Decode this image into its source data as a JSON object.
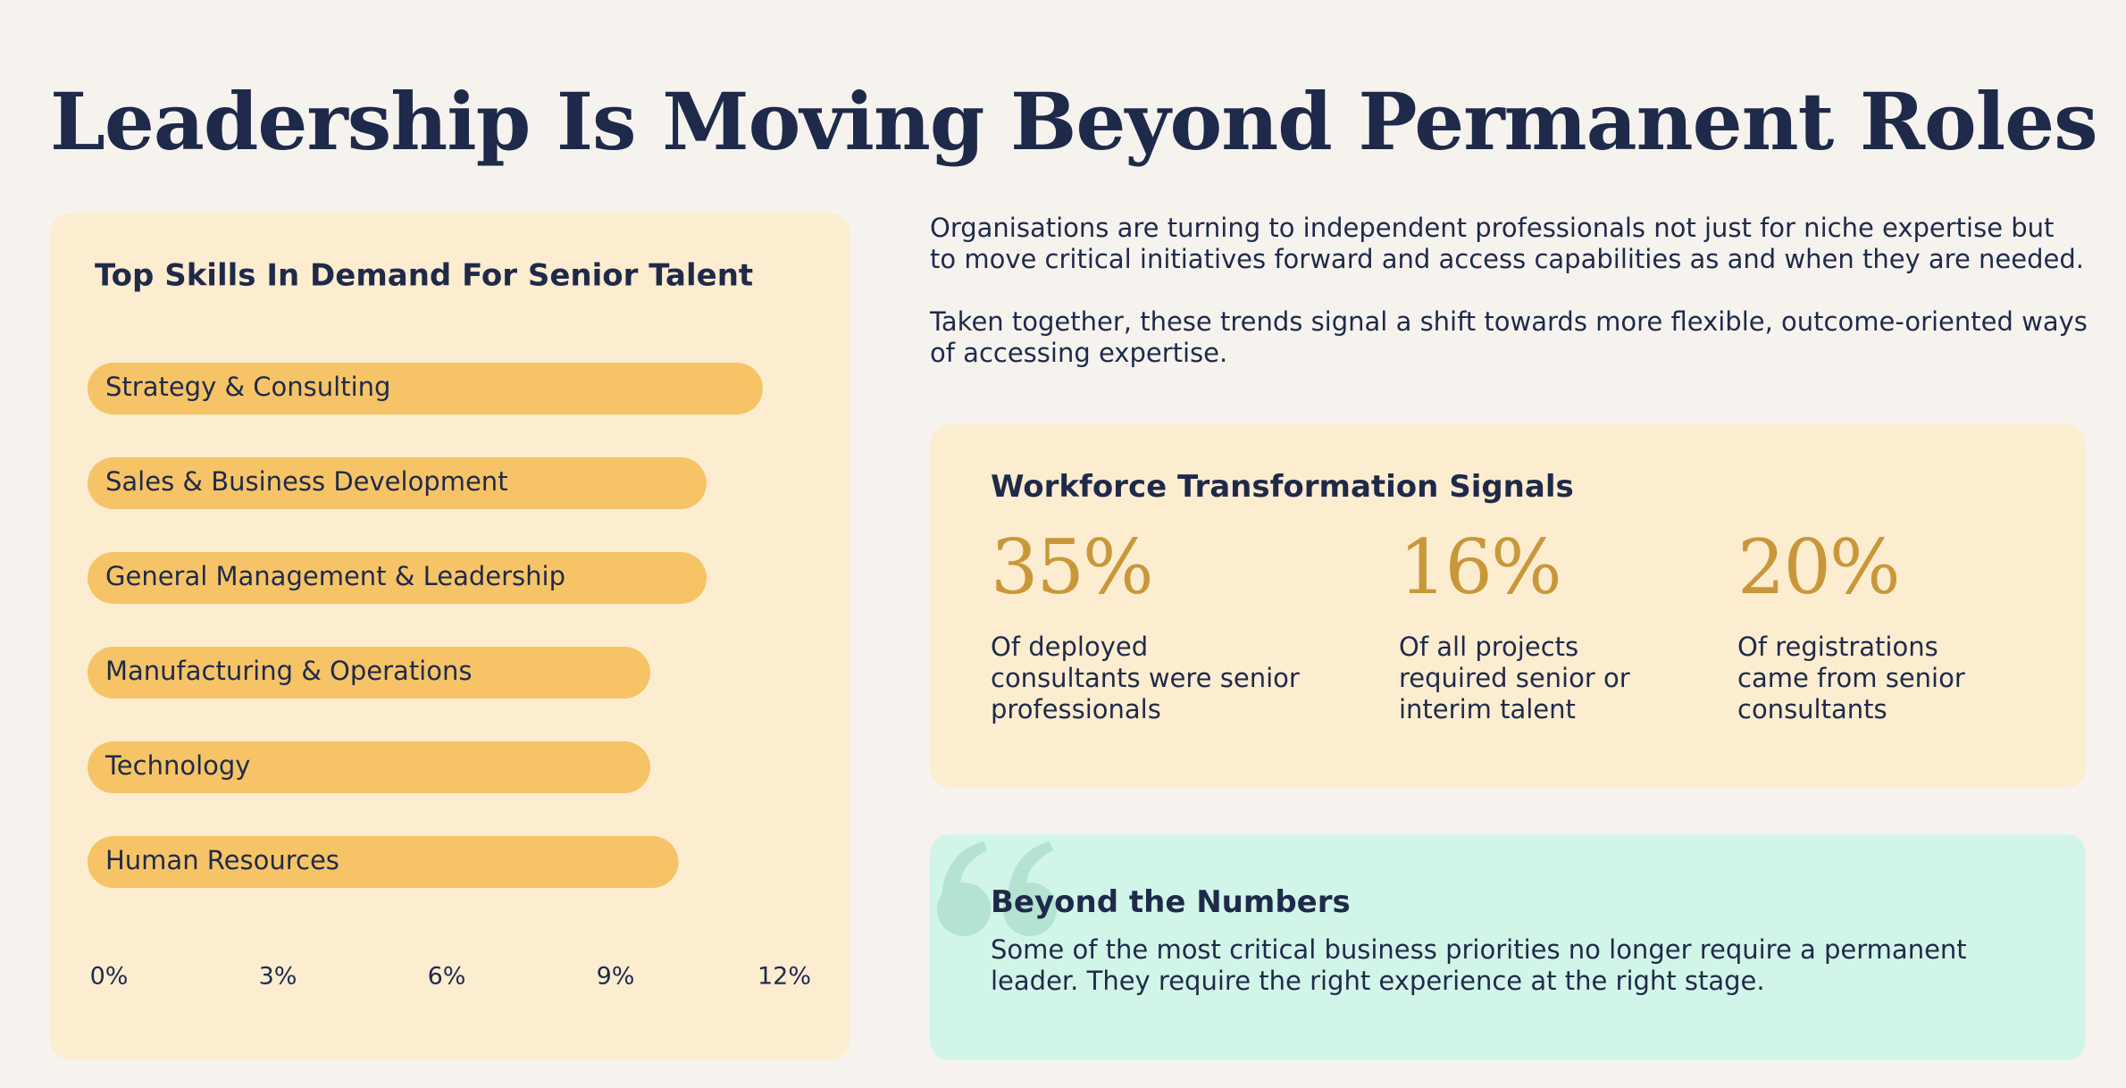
{
  "header": {
    "title": "Leadership Is Moving Beyond Permanent Roles"
  },
  "intro": [
    {
      "lines": [
        "Organisations are turning to independent professionals not just for niche expertise but",
        "to move critical initiatives forward and access capabilities as and when they are needed."
      ]
    },
    {
      "lines": [
        "Taken together, these trends signal a shift towards more flexible, outcome-oriented ways",
        "of accessing expertise."
      ]
    }
  ],
  "chart_data": {
    "type": "bar",
    "orientation": "horizontal",
    "title": "Top Skills In Demand For Senior Talent",
    "categories": [
      "Strategy & Consulting",
      "Sales & Business Development",
      "General Management & Leadership",
      "Manufacturing & Operations",
      "Technology",
      "Human Resources"
    ],
    "values": [
      12,
      11,
      11,
      10,
      10,
      10.5
    ],
    "color": "#f6c466",
    "xlim": [
      0,
      12
    ],
    "xticks": [
      {
        "value": 0,
        "label": "0%"
      },
      {
        "value": 3,
        "label": "3%"
      },
      {
        "value": 6,
        "label": "6%"
      },
      {
        "value": 9,
        "label": "9%"
      },
      {
        "value": 12,
        "label": "12%"
      }
    ],
    "grid": false
  },
  "signals": {
    "heading": "Workforce Transformation Signals",
    "stats": [
      {
        "value": "35%",
        "lines": [
          "Of deployed",
          "consultants were senior",
          "professionals"
        ]
      },
      {
        "value": "16%",
        "lines": [
          "Of all projects",
          "required senior or",
          "interim talent"
        ]
      },
      {
        "value": "20%",
        "lines": [
          "Of registrations",
          "came from senior",
          "consultants"
        ]
      }
    ]
  },
  "quote": {
    "heading": "Beyond the Numbers",
    "lines": [
      "Some of the most critical business priorities no longer require a permanent",
      "leader. They require the right experience at the right stage."
    ]
  }
}
